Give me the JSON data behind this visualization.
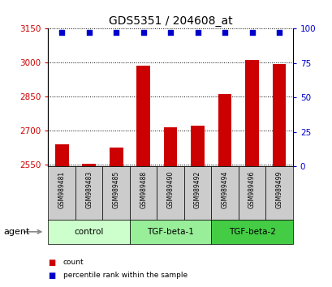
{
  "title": "GDS5351 / 204608_at",
  "samples": [
    "GSM989481",
    "GSM989483",
    "GSM989485",
    "GSM989488",
    "GSM989490",
    "GSM989492",
    "GSM989494",
    "GSM989496",
    "GSM989499"
  ],
  "counts": [
    2638,
    2553,
    2625,
    2985,
    2715,
    2720,
    2860,
    3010,
    2995
  ],
  "percentile": [
    97,
    97,
    97,
    97,
    97,
    97,
    97,
    97,
    97
  ],
  "ylim_left": [
    2540,
    3150
  ],
  "ylim_right": [
    0,
    100
  ],
  "yticks_left": [
    2550,
    2700,
    2850,
    3000,
    3150
  ],
  "yticks_right": [
    0,
    25,
    50,
    75,
    100
  ],
  "groups": [
    {
      "label": "control",
      "indices": [
        0,
        1,
        2
      ],
      "color": "#ccffcc"
    },
    {
      "label": "TGF-beta-1",
      "indices": [
        3,
        4,
        5
      ],
      "color": "#99ee99"
    },
    {
      "label": "TGF-beta-2",
      "indices": [
        6,
        7,
        8
      ],
      "color": "#44cc44"
    }
  ],
  "bar_color": "#cc0000",
  "dot_color": "#0000cc",
  "dot_size": 25,
  "bar_width": 0.5,
  "ylabel_left_color": "#cc0000",
  "ylabel_right_color": "#0000cc",
  "sample_bg_color": "#cccccc",
  "agent_label": "agent"
}
